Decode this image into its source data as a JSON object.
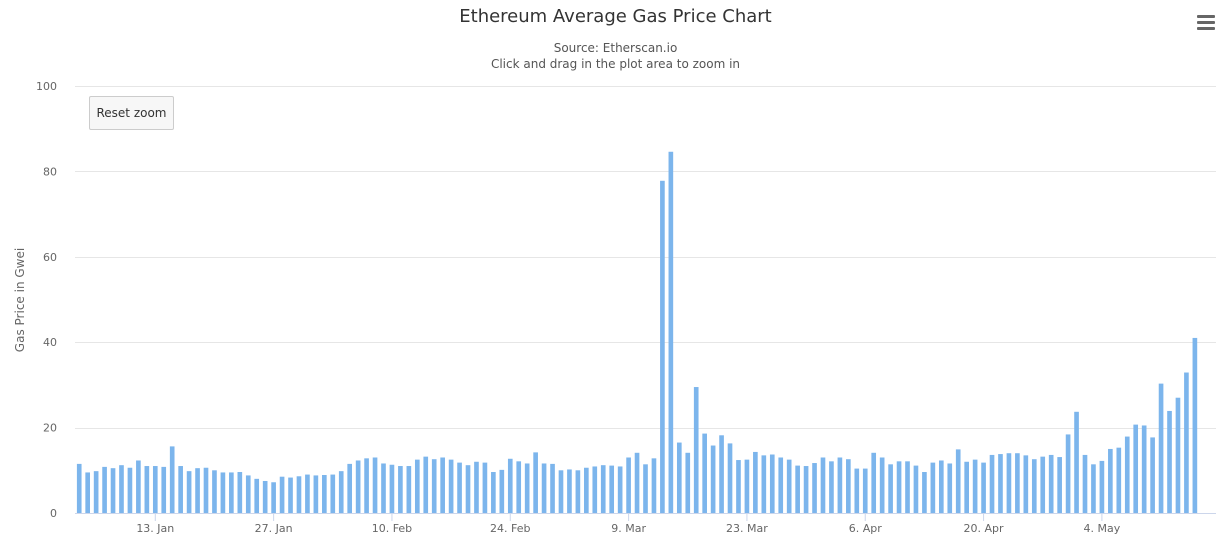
{
  "chart_data": {
    "type": "bar",
    "title": "Ethereum Average Gas Price Chart",
    "subtitle": [
      "Source: Etherscan.io",
      "Click and drag in the plot area to zoom in"
    ],
    "xlabel": "",
    "ylabel": "Gas Price in Gwei",
    "ylim": [
      0,
      100
    ],
    "yticks": [
      0,
      20,
      40,
      60,
      80,
      100
    ],
    "grid": true,
    "x_start": "2020-01-04",
    "x_end": "2020-05-17",
    "xticks": [
      {
        "date": "2020-01-13",
        "label": "13. Jan"
      },
      {
        "date": "2020-01-27",
        "label": "27. Jan"
      },
      {
        "date": "2020-02-10",
        "label": "10. Feb"
      },
      {
        "date": "2020-02-24",
        "label": "24. Feb"
      },
      {
        "date": "2020-03-09",
        "label": "9. Mar"
      },
      {
        "date": "2020-03-23",
        "label": "23. Mar"
      },
      {
        "date": "2020-04-06",
        "label": "6. Apr"
      },
      {
        "date": "2020-04-20",
        "label": "20. Apr"
      },
      {
        "date": "2020-05-04",
        "label": "4. May"
      }
    ],
    "series": [
      {
        "color": "#7cb5ec",
        "values": [
          11.5,
          9.5,
          9.8,
          10.8,
          10.5,
          11.2,
          10.6,
          12.3,
          11.0,
          11.0,
          10.8,
          15.6,
          11.0,
          9.8,
          10.5,
          10.6,
          10.0,
          9.5,
          9.5,
          9.6,
          8.8,
          8.0,
          7.5,
          7.2,
          8.5,
          8.3,
          8.6,
          9.0,
          8.8,
          8.9,
          9.0,
          9.8,
          11.5,
          12.3,
          12.8,
          13.0,
          11.6,
          11.3,
          11.0,
          11.0,
          12.5,
          13.2,
          12.6,
          13.0,
          12.5,
          11.8,
          11.2,
          12.0,
          11.8,
          9.6,
          10.1,
          12.7,
          12.1,
          11.6,
          14.2,
          11.6,
          11.5,
          10.0,
          10.2,
          10.0,
          10.6,
          10.9,
          11.2,
          11.1,
          10.9,
          13.0,
          14.1,
          11.4,
          12.8,
          77.8,
          84.6,
          16.5,
          14.1,
          29.5,
          18.6,
          15.8,
          18.2,
          16.3,
          12.4,
          12.5,
          14.3,
          13.5,
          13.7,
          13.0,
          12.5,
          11.1,
          11.0,
          11.7,
          13.0,
          12.1,
          13.0,
          12.6,
          10.4,
          10.4,
          14.1,
          13.0,
          11.4,
          12.1,
          12.1,
          11.1,
          9.6,
          11.8,
          12.3,
          11.6,
          14.9,
          12.0,
          12.5,
          11.8,
          13.6,
          13.8,
          14.0,
          14.0,
          13.5,
          12.6,
          13.2,
          13.6,
          13.1,
          18.4,
          23.7,
          13.6,
          11.4,
          12.2,
          15.0,
          15.3,
          17.9,
          20.7,
          20.5,
          17.7,
          30.3,
          23.9,
          27.0,
          32.9,
          41.0
        ]
      }
    ]
  },
  "ui": {
    "reset_zoom_label": "Reset zoom",
    "menu_icon": "hamburger-menu-icon"
  }
}
